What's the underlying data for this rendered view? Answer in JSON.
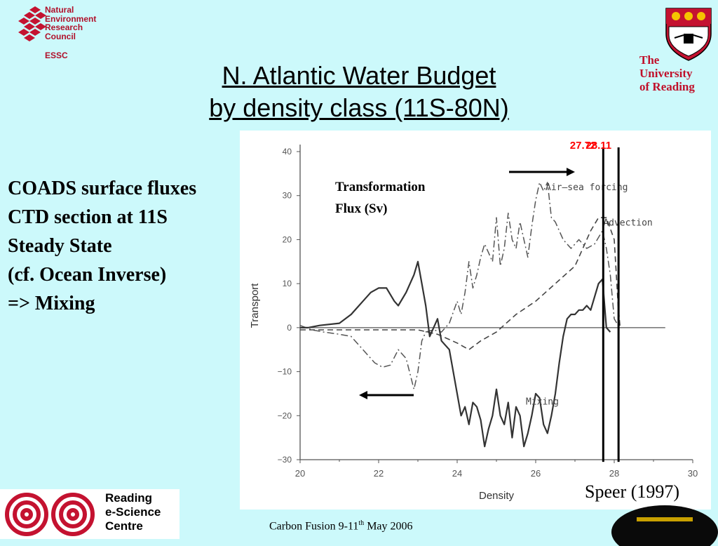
{
  "header": {
    "nerc_lines": [
      "Natural",
      "Environment",
      "Research",
      "Council"
    ],
    "essc": "ESSC",
    "university_lines": [
      "The",
      "University",
      "of Reading"
    ]
  },
  "title_lines": [
    "N. Atlantic Water Budget",
    "by density class (11S-80N)"
  ],
  "bullets": [
    "COADS surface fluxes",
    "CTD section at 11S",
    "Steady State",
    "(cf. Ocean Inverse)",
    "=> Mixing"
  ],
  "citation": "Speer (1997)",
  "footer": {
    "prefix": "Carbon Fusion 9-11",
    "sup": "th",
    "suffix": " May 2006"
  },
  "resc_lines": [
    "Reading",
    "e-Science",
    "Centre"
  ],
  "colors": {
    "background": "#ccf9fb",
    "brand_red": "#b0102a",
    "marker_red": "#ff0000"
  },
  "chart_data": {
    "type": "line",
    "xlabel": "Density",
    "ylabel": "Transport",
    "xlim": [
      20,
      30
    ],
    "ylim": [
      -30,
      40
    ],
    "xticks": [
      20,
      22,
      24,
      26,
      28,
      30
    ],
    "yticks": [
      40,
      30,
      20,
      10,
      0,
      -10,
      -20,
      -30
    ],
    "annotation": "Transformation Flux (Sv)",
    "markers": [
      {
        "label": "27.72",
        "x": 27.72
      },
      {
        "label": "28.11",
        "x": 28.11
      }
    ],
    "series": [
      {
        "name": "Air-sea forcing",
        "style": "dash-dot",
        "points": [
          [
            20,
            0.5
          ],
          [
            20.3,
            -0.5
          ],
          [
            20.6,
            -1
          ],
          [
            21,
            -1.5
          ],
          [
            21.3,
            -2
          ],
          [
            21.6,
            -5
          ],
          [
            21.9,
            -8
          ],
          [
            22.1,
            -9
          ],
          [
            22.3,
            -8.5
          ],
          [
            22.5,
            -5
          ],
          [
            22.7,
            -7
          ],
          [
            22.9,
            -14
          ],
          [
            23.0,
            -10
          ],
          [
            23.1,
            -3
          ],
          [
            23.2,
            -1
          ],
          [
            23.4,
            -0.5
          ],
          [
            23.6,
            -1
          ],
          [
            23.8,
            1
          ],
          [
            24.0,
            6
          ],
          [
            24.1,
            3
          ],
          [
            24.2,
            8
          ],
          [
            24.3,
            15
          ],
          [
            24.4,
            9
          ],
          [
            24.5,
            12
          ],
          [
            24.6,
            16
          ],
          [
            24.7,
            19
          ],
          [
            24.8,
            17
          ],
          [
            24.9,
            15
          ],
          [
            25.0,
            25
          ],
          [
            25.1,
            14
          ],
          [
            25.2,
            18
          ],
          [
            25.3,
            26
          ],
          [
            25.4,
            20
          ],
          [
            25.5,
            18
          ],
          [
            25.6,
            24
          ],
          [
            25.8,
            16
          ],
          [
            25.9,
            23
          ],
          [
            26.0,
            29
          ],
          [
            26.1,
            33
          ],
          [
            26.2,
            31
          ],
          [
            26.3,
            33
          ],
          [
            26.4,
            25
          ],
          [
            26.5,
            24
          ],
          [
            26.7,
            20
          ],
          [
            26.9,
            18
          ],
          [
            27.1,
            20
          ],
          [
            27.3,
            18
          ],
          [
            27.5,
            19
          ],
          [
            27.7,
            22
          ],
          [
            27.8,
            18
          ],
          [
            27.9,
            12
          ],
          [
            28.0,
            2
          ],
          [
            28.1,
            0.5
          ]
        ]
      },
      {
        "name": "Advection",
        "style": "dashed",
        "points": [
          [
            20,
            -0.5
          ],
          [
            21,
            -0.5
          ],
          [
            22,
            -0.5
          ],
          [
            23,
            -0.5
          ],
          [
            23.5,
            -1.5
          ],
          [
            24.0,
            -3.5
          ],
          [
            24.3,
            -5
          ],
          [
            24.6,
            -3
          ],
          [
            25,
            -1
          ],
          [
            25.5,
            3
          ],
          [
            26,
            6
          ],
          [
            26.5,
            10
          ],
          [
            27,
            14
          ],
          [
            27.2,
            18
          ],
          [
            27.4,
            22
          ],
          [
            27.6,
            25
          ],
          [
            27.8,
            25
          ],
          [
            28.0,
            20
          ],
          [
            28.1,
            5
          ],
          [
            28.15,
            0
          ]
        ]
      },
      {
        "name": "Mixing",
        "style": "solid",
        "points": [
          [
            20,
            0
          ],
          [
            20.2,
            0
          ],
          [
            20.5,
            0.5
          ],
          [
            21,
            1
          ],
          [
            21.3,
            3
          ],
          [
            21.6,
            6
          ],
          [
            21.8,
            8
          ],
          [
            22.0,
            9
          ],
          [
            22.2,
            9
          ],
          [
            22.4,
            6
          ],
          [
            22.5,
            5
          ],
          [
            22.7,
            8
          ],
          [
            22.9,
            12
          ],
          [
            23.0,
            15
          ],
          [
            23.1,
            10
          ],
          [
            23.2,
            5
          ],
          [
            23.3,
            -2
          ],
          [
            23.4,
            0
          ],
          [
            23.5,
            2
          ],
          [
            23.6,
            -3
          ],
          [
            23.8,
            -5
          ],
          [
            23.9,
            -10
          ],
          [
            24.0,
            -15
          ],
          [
            24.1,
            -20
          ],
          [
            24.2,
            -18
          ],
          [
            24.3,
            -22
          ],
          [
            24.4,
            -17
          ],
          [
            24.5,
            -18
          ],
          [
            24.6,
            -21
          ],
          [
            24.7,
            -27
          ],
          [
            24.8,
            -23
          ],
          [
            24.9,
            -20
          ],
          [
            25.0,
            -14
          ],
          [
            25.1,
            -20
          ],
          [
            25.2,
            -22
          ],
          [
            25.3,
            -17
          ],
          [
            25.4,
            -25
          ],
          [
            25.5,
            -18
          ],
          [
            25.6,
            -20
          ],
          [
            25.7,
            -27
          ],
          [
            25.8,
            -24
          ],
          [
            25.9,
            -20
          ],
          [
            26.0,
            -15
          ],
          [
            26.1,
            -16
          ],
          [
            26.2,
            -22
          ],
          [
            26.3,
            -24
          ],
          [
            26.4,
            -20
          ],
          [
            26.5,
            -15
          ],
          [
            26.6,
            -8
          ],
          [
            26.7,
            -2
          ],
          [
            26.8,
            2
          ],
          [
            26.9,
            3
          ],
          [
            27.0,
            3
          ],
          [
            27.1,
            4
          ],
          [
            27.2,
            4
          ],
          [
            27.3,
            5
          ],
          [
            27.4,
            4
          ],
          [
            27.6,
            10
          ],
          [
            27.7,
            11
          ],
          [
            27.8,
            0
          ],
          [
            27.9,
            -1
          ]
        ]
      }
    ]
  }
}
